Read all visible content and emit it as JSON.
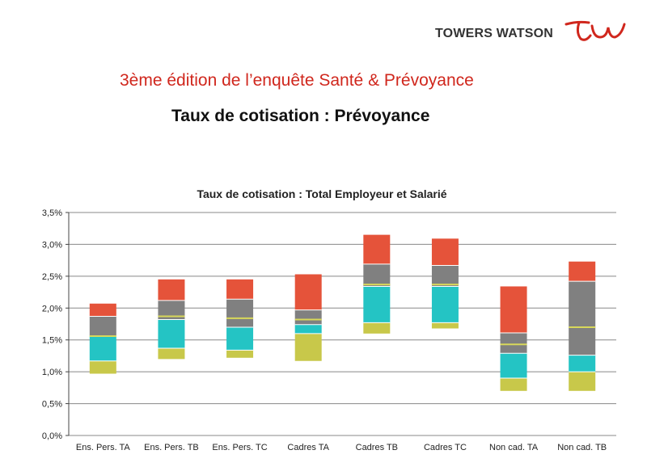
{
  "header": {
    "brand": "TOWERS WATSON",
    "title": "3ème édition de l’enquête Santé & Prévoyance",
    "subtitle": "Taux de cotisation : Prévoyance"
  },
  "colors": {
    "brand_red": "#d0271d",
    "segment_colors": [
      "#c8c84a",
      "#24c4c4",
      "#808080",
      "#e5533a"
    ],
    "divider": "#d8d85a"
  },
  "chart_data": {
    "type": "bar",
    "title": "Taux de cotisation : Total Employeur et Salarié",
    "xlabel": "",
    "ylabel": "",
    "ylim": [
      0,
      3.5
    ],
    "y_ticks": [
      "0,0%",
      "0,5%",
      "1,0%",
      "1,5%",
      "2,0%",
      "2,5%",
      "3,0%",
      "3,5%"
    ],
    "grid": true,
    "stacked_floating": true,
    "categories": [
      "Ens. Pers. TA",
      "Ens. Pers. TB",
      "Ens. Pers. TC",
      "Cadres TA",
      "Cadres TB",
      "Cadres TC",
      "Non cad. TA",
      "Non cad. TB"
    ],
    "series": [
      {
        "values": [
          [
            0.97,
            1.17
          ],
          [
            1.2,
            1.37
          ],
          [
            1.22,
            1.34
          ],
          [
            1.17,
            1.6
          ],
          [
            1.6,
            1.77
          ],
          [
            1.68,
            1.77
          ],
          [
            0.7,
            0.9
          ],
          [
            0.7,
            1.0
          ]
        ]
      },
      {
        "values": [
          [
            1.17,
            1.56
          ],
          [
            1.37,
            1.82
          ],
          [
            1.34,
            1.7
          ],
          [
            1.6,
            1.74
          ],
          [
            1.77,
            2.34
          ],
          [
            1.77,
            2.34
          ],
          [
            0.9,
            1.29
          ],
          [
            1.0,
            1.26
          ]
        ]
      },
      {
        "values": [
          [
            1.56,
            1.87
          ],
          [
            1.82,
            2.12
          ],
          [
            1.7,
            2.14
          ],
          [
            1.74,
            1.97
          ],
          [
            2.34,
            2.69
          ],
          [
            2.34,
            2.67
          ],
          [
            1.29,
            1.61
          ],
          [
            1.26,
            2.42
          ]
        ]
      },
      {
        "values": [
          [
            1.87,
            2.07
          ],
          [
            2.12,
            2.45
          ],
          [
            2.14,
            2.45
          ],
          [
            1.97,
            2.53
          ],
          [
            2.69,
            3.15
          ],
          [
            2.67,
            3.09
          ],
          [
            1.61,
            2.34
          ],
          [
            2.42,
            2.73
          ]
        ]
      }
    ],
    "markers": [
      1.56,
      1.87,
      1.84,
      1.82,
      2.37,
      2.37,
      1.43,
      1.7
    ]
  }
}
